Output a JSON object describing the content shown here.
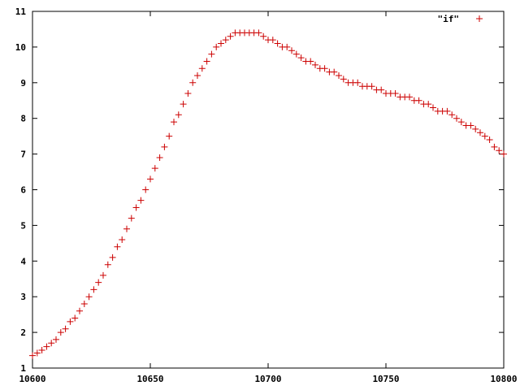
{
  "chart_data": {
    "type": "scatter",
    "title": "",
    "xlabel": "",
    "ylabel": "",
    "xlim": [
      10600,
      10800
    ],
    "ylim": [
      1,
      11
    ],
    "xticks": [
      10600,
      10650,
      10700,
      10750,
      10800
    ],
    "yticks": [
      1,
      2,
      3,
      4,
      5,
      6,
      7,
      8,
      9,
      10,
      11
    ],
    "grid": false,
    "legend_position": "top-right",
    "marker": "plus",
    "series": [
      {
        "name": "\"if\"",
        "color": "#cc0000",
        "x": [
          10600,
          10602,
          10604,
          10606,
          10608,
          10610,
          10612,
          10614,
          10616,
          10618,
          10620,
          10622,
          10624,
          10626,
          10628,
          10630,
          10632,
          10634,
          10636,
          10638,
          10640,
          10642,
          10644,
          10646,
          10648,
          10650,
          10652,
          10654,
          10656,
          10658,
          10660,
          10662,
          10664,
          10666,
          10668,
          10670,
          10672,
          10674,
          10676,
          10678,
          10680,
          10682,
          10684,
          10686,
          10688,
          10690,
          10692,
          10694,
          10696,
          10698,
          10700,
          10702,
          10704,
          10706,
          10708,
          10710,
          10712,
          10714,
          10716,
          10718,
          10720,
          10722,
          10724,
          10726,
          10728,
          10730,
          10732,
          10734,
          10736,
          10738,
          10740,
          10742,
          10744,
          10746,
          10748,
          10750,
          10752,
          10754,
          10756,
          10758,
          10760,
          10762,
          10764,
          10766,
          10768,
          10770,
          10772,
          10774,
          10776,
          10778,
          10780,
          10782,
          10784,
          10786,
          10788,
          10790,
          10792,
          10794,
          10796,
          10798,
          10800
        ],
        "y": [
          1.35,
          1.42,
          1.5,
          1.6,
          1.7,
          1.8,
          2.0,
          2.1,
          2.3,
          2.4,
          2.6,
          2.8,
          3.0,
          3.2,
          3.4,
          3.6,
          3.9,
          4.1,
          4.4,
          4.6,
          4.9,
          5.2,
          5.5,
          5.7,
          6.0,
          6.3,
          6.6,
          6.9,
          7.2,
          7.5,
          7.9,
          8.1,
          8.4,
          8.7,
          9.0,
          9.2,
          9.4,
          9.6,
          9.8,
          10.0,
          10.1,
          10.2,
          10.3,
          10.4,
          10.4,
          10.4,
          10.4,
          10.4,
          10.4,
          10.3,
          10.2,
          10.2,
          10.1,
          10.0,
          10.0,
          9.9,
          9.8,
          9.7,
          9.6,
          9.6,
          9.5,
          9.4,
          9.4,
          9.3,
          9.3,
          9.2,
          9.1,
          9.0,
          9.0,
          9.0,
          8.9,
          8.9,
          8.9,
          8.8,
          8.8,
          8.7,
          8.7,
          8.7,
          8.6,
          8.6,
          8.6,
          8.5,
          8.5,
          8.4,
          8.4,
          8.3,
          8.2,
          8.2,
          8.2,
          8.1,
          8.0,
          7.9,
          7.8,
          7.8,
          7.7,
          7.6,
          7.5,
          7.4,
          7.2,
          7.1,
          7.0
        ]
      }
    ]
  }
}
